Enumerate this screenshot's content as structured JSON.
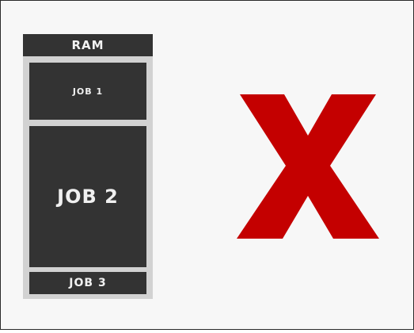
{
  "ram": {
    "header": "RAM",
    "jobs": [
      {
        "label": "JOB 1"
      },
      {
        "label": "JOB 2"
      },
      {
        "label": "JOB 3"
      }
    ]
  },
  "mark": {
    "icon": "cross-icon",
    "color": "#c40000"
  }
}
